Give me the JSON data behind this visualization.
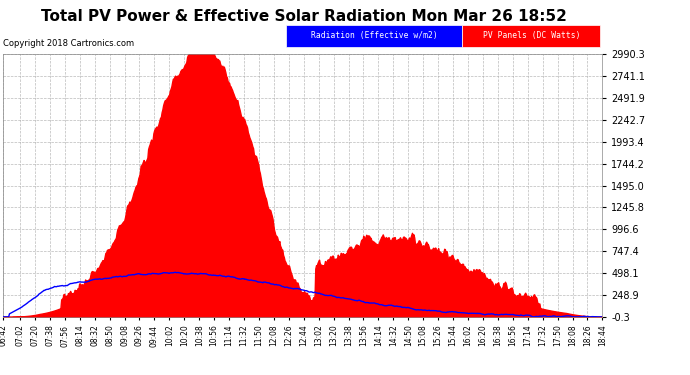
{
  "title": "Total PV Power & Effective Solar Radiation Mon Mar 26 18:52",
  "copyright": "Copyright 2018 Cartronics.com",
  "background_color": "#ffffff",
  "plot_bg_color": "#ffffff",
  "grid_color": "#aaaaaa",
  "title_color": "#000000",
  "legend_radiation_label": "Radiation (Effective w/m2)",
  "legend_pv_label": "PV Panels (DC Watts)",
  "legend_radiation_bg": "#0000ff",
  "legend_pv_bg": "#ff0000",
  "radiation_line_color": "#0000ff",
  "pv_fill_color": "#ff0000",
  "ymin": -0.3,
  "ymax": 2990.3,
  "yticks": [
    -0.3,
    248.9,
    498.1,
    747.4,
    996.6,
    1245.8,
    1495.0,
    1744.2,
    1993.4,
    2242.7,
    2491.9,
    2741.1,
    2990.3
  ],
  "xlabel_fontsize": 5.5,
  "ylabel_fontsize": 7,
  "title_fontsize": 11,
  "copyright_fontsize": 6,
  "xtick_labels": [
    "06:42",
    "07:02",
    "07:20",
    "07:38",
    "07:56",
    "08:14",
    "08:32",
    "08:50",
    "09:08",
    "09:26",
    "09:44",
    "10:02",
    "10:20",
    "10:38",
    "10:56",
    "11:14",
    "11:32",
    "11:50",
    "12:08",
    "12:26",
    "12:44",
    "13:02",
    "13:20",
    "13:38",
    "13:56",
    "14:14",
    "14:32",
    "14:50",
    "15:08",
    "15:26",
    "15:44",
    "16:02",
    "16:20",
    "16:38",
    "16:56",
    "17:14",
    "17:32",
    "17:50",
    "18:08",
    "18:26",
    "18:44"
  ]
}
